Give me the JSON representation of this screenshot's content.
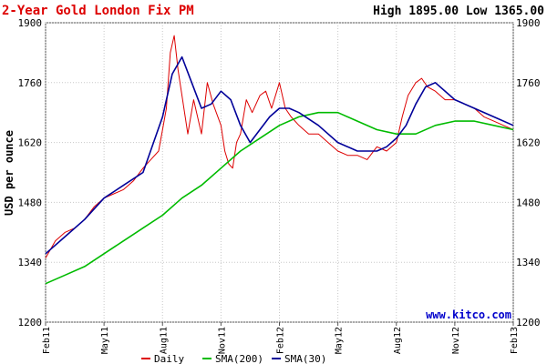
{
  "chart_data": {
    "type": "line",
    "title": "2-Year Gold London Fix PM",
    "stats": "High 1895.00 Low 1365.00",
    "ylabel": "USD per ounce",
    "watermark": "www.kitco.com",
    "ylim": [
      1200,
      1900
    ],
    "yticks": [
      1200,
      1340,
      1480,
      1620,
      1760,
      1900
    ],
    "xlim": [
      0,
      24
    ],
    "x_tick_positions": [
      0,
      3,
      6,
      9,
      12,
      15,
      18,
      21,
      24
    ],
    "x_tick_labels": [
      "Feb11",
      "May11",
      "Aug11",
      "Nov11",
      "Feb12",
      "May12",
      "Aug12",
      "Nov12",
      "Feb13"
    ],
    "grid": true,
    "legend_position": "bottom",
    "series": [
      {
        "name": "Daily",
        "color": "#dd0000",
        "x": [
          0,
          0.5,
          1,
          1.5,
          2,
          2.5,
          3,
          3.5,
          4,
          4.5,
          5,
          5.4,
          5.8,
          6,
          6.2,
          6.4,
          6.6,
          6.8,
          7,
          7.3,
          7.6,
          8,
          8.3,
          8.6,
          9,
          9.2,
          9.4,
          9.6,
          9.8,
          10,
          10.3,
          10.6,
          11,
          11.3,
          11.6,
          12,
          12.3,
          12.6,
          13,
          13.5,
          14,
          14.5,
          15,
          15.5,
          16,
          16.5,
          17,
          17.5,
          18,
          18.3,
          18.6,
          19,
          19.3,
          19.6,
          20,
          20.5,
          21,
          21.5,
          22,
          22.5,
          23,
          23.5,
          24
        ],
        "values": [
          1350,
          1390,
          1410,
          1420,
          1440,
          1470,
          1490,
          1500,
          1510,
          1530,
          1560,
          1580,
          1600,
          1650,
          1700,
          1830,
          1870,
          1790,
          1730,
          1640,
          1720,
          1640,
          1760,
          1710,
          1660,
          1600,
          1570,
          1560,
          1620,
          1640,
          1720,
          1690,
          1730,
          1740,
          1700,
          1760,
          1700,
          1680,
          1660,
          1640,
          1640,
          1620,
          1600,
          1590,
          1590,
          1580,
          1610,
          1600,
          1620,
          1680,
          1730,
          1760,
          1770,
          1750,
          1740,
          1720,
          1720,
          1710,
          1700,
          1680,
          1670,
          1660,
          1650
        ]
      },
      {
        "name": "SMA(200)",
        "color": "#00bb00",
        "x": [
          0,
          1,
          2,
          3,
          4,
          5,
          6,
          7,
          8,
          9,
          10,
          11,
          12,
          13,
          14,
          15,
          16,
          17,
          18,
          19,
          20,
          21,
          22,
          23,
          24
        ],
        "values": [
          1290,
          1310,
          1330,
          1360,
          1390,
          1420,
          1450,
          1490,
          1520,
          1560,
          1600,
          1630,
          1660,
          1680,
          1690,
          1690,
          1670,
          1650,
          1640,
          1640,
          1660,
          1670,
          1670,
          1660,
          1650
        ]
      },
      {
        "name": "SMA(30)",
        "color": "#000099",
        "x": [
          0,
          1,
          2,
          3,
          4,
          5,
          6,
          6.5,
          7,
          7.5,
          8,
          8.5,
          9,
          9.5,
          10,
          10.5,
          11,
          11.5,
          12,
          12.5,
          13,
          14,
          15,
          16,
          17,
          17.5,
          18,
          18.5,
          19,
          19.5,
          20,
          21,
          22,
          23,
          24
        ],
        "values": [
          1360,
          1400,
          1440,
          1490,
          1520,
          1550,
          1680,
          1780,
          1820,
          1760,
          1700,
          1710,
          1740,
          1720,
          1660,
          1620,
          1650,
          1680,
          1700,
          1700,
          1690,
          1660,
          1620,
          1600,
          1600,
          1610,
          1630,
          1660,
          1710,
          1750,
          1760,
          1720,
          1700,
          1680,
          1660
        ]
      }
    ]
  }
}
